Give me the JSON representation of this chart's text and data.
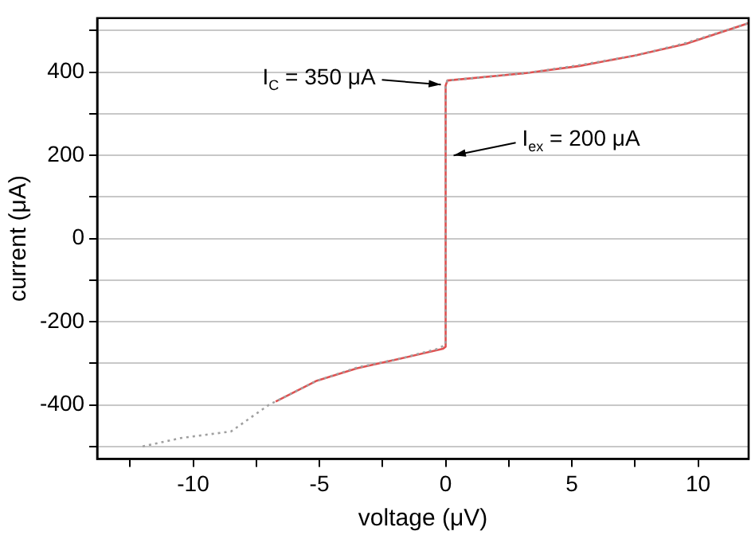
{
  "chart_data": {
    "type": "line",
    "xlabel": "voltage (μV)",
    "ylabel": "current (μA)",
    "xlim": [
      -13.8,
      12
    ],
    "xticks": [
      {
        "value": -12.5,
        "label": null
      },
      -10,
      {
        "value": -7.5,
        "label": null
      },
      -5,
      {
        "value": -2.5,
        "label": null
      },
      0,
      {
        "value": 2.5,
        "label": null
      },
      5,
      {
        "value": 7.5,
        "label": null
      },
      10
    ],
    "ylim": [
      -530,
      530
    ],
    "yticks": [
      {
        "value": -500,
        "label": null
      },
      -400,
      {
        "value": -300,
        "label": null
      },
      -200,
      {
        "value": -100,
        "label": null
      },
      0,
      {
        "value": 100,
        "label": null
      },
      200,
      {
        "value": 300,
        "label": null
      },
      400,
      {
        "value": 500,
        "label": null
      }
    ],
    "grid": "y",
    "legend": false,
    "marker": "none",
    "series": [
      {
        "color": "#a0a0a0",
        "line_style": "dotted",
        "x": [
          -12,
          -10.5,
          -8.5,
          -7,
          -5.1,
          -3.5,
          -1.8,
          -0.3,
          0,
          0,
          0.07,
          3.2,
          5.3,
          7.5,
          9.5,
          12
        ],
        "values": [
          -500,
          -480,
          -464,
          -400,
          -342,
          -310,
          -289,
          -265,
          -255,
          368,
          380,
          398,
          417,
          440,
          470,
          518
        ]
      },
      {
        "color": "#e05050",
        "line_style": "solid",
        "x": [
          -6.73,
          -5.1,
          -3.5,
          -1.8,
          -0.1,
          0,
          0,
          0.07,
          3.2,
          5.3,
          7.5,
          9.5,
          12
        ],
        "values": [
          -392,
          -342,
          -312,
          -289,
          -265,
          -260,
          368,
          380,
          398,
          415,
          440,
          468,
          518
        ]
      }
    ],
    "annotations": [
      {
        "text": "I$_{C}$ = 350 μA",
        "x": 0,
        "y": 370
      },
      {
        "text": "I$_{ex}$ = 200 μA",
        "x": 0,
        "y": 200
      }
    ]
  }
}
